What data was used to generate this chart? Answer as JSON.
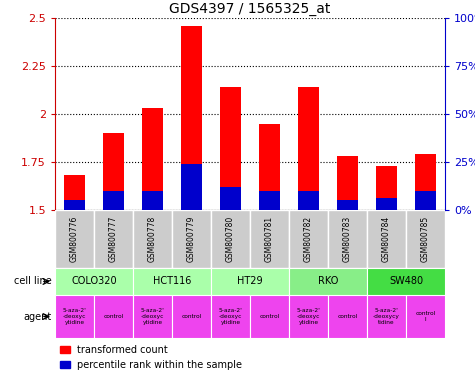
{
  "title": "GDS4397 / 1565325_at",
  "samples": [
    "GSM800776",
    "GSM800777",
    "GSM800778",
    "GSM800779",
    "GSM800780",
    "GSM800781",
    "GSM800782",
    "GSM800783",
    "GSM800784",
    "GSM800785"
  ],
  "transformed_counts": [
    1.68,
    1.9,
    2.03,
    2.46,
    2.14,
    1.95,
    2.14,
    1.78,
    1.73,
    1.79
  ],
  "percentile_ranks_pct": [
    5,
    10,
    10,
    24,
    12,
    10,
    10,
    5,
    6,
    10
  ],
  "bar_base": 1.5,
  "ylim_left": [
    1.5,
    2.5
  ],
  "ylim_right": [
    0,
    100
  ],
  "yticks_left": [
    1.5,
    1.75,
    2.0,
    2.25,
    2.5
  ],
  "yticks_right": [
    0,
    25,
    50,
    75,
    100
  ],
  "yticklabels_left": [
    "1.5",
    "1.75",
    "2",
    "2.25",
    "2.5"
  ],
  "yticklabels_right": [
    "0%",
    "25%",
    "50%",
    "75%",
    "100%"
  ],
  "cell_lines": [
    {
      "name": "COLO320",
      "span": [
        0,
        2
      ],
      "color": "#aaffaa"
    },
    {
      "name": "HCT116",
      "span": [
        2,
        4
      ],
      "color": "#aaffaa"
    },
    {
      "name": "HT29",
      "span": [
        4,
        6
      ],
      "color": "#aaffaa"
    },
    {
      "name": "RKO",
      "span": [
        6,
        8
      ],
      "color": "#88ee88"
    },
    {
      "name": "SW480",
      "span": [
        8,
        10
      ],
      "color": "#44dd44"
    }
  ],
  "agents": [
    {
      "name": "5-aza-2'\n-deoxyc\nytidine",
      "span": [
        0,
        1
      ],
      "color": "#ee44ee"
    },
    {
      "name": "control",
      "span": [
        1,
        2
      ],
      "color": "#ee44ee"
    },
    {
      "name": "5-aza-2'\n-deoxyc\nytidine",
      "span": [
        2,
        3
      ],
      "color": "#ee44ee"
    },
    {
      "name": "control",
      "span": [
        3,
        4
      ],
      "color": "#ee44ee"
    },
    {
      "name": "5-aza-2'\n-deoxyc\nytidine",
      "span": [
        4,
        5
      ],
      "color": "#ee44ee"
    },
    {
      "name": "control",
      "span": [
        5,
        6
      ],
      "color": "#ee44ee"
    },
    {
      "name": "5-aza-2'\n-deoxyc\nytidine",
      "span": [
        6,
        7
      ],
      "color": "#ee44ee"
    },
    {
      "name": "control",
      "span": [
        7,
        8
      ],
      "color": "#ee44ee"
    },
    {
      "name": "5-aza-2'\n-deoxycy\ntidine",
      "span": [
        8,
        9
      ],
      "color": "#ee44ee"
    },
    {
      "name": "control\nl",
      "span": [
        9,
        10
      ],
      "color": "#ee44ee"
    }
  ],
  "bar_color_red": "#ff0000",
  "bar_color_blue": "#0000cc",
  "sample_bg_color": "#cccccc",
  "left_axis_color": "#cc0000",
  "right_axis_color": "#0000cc",
  "figsize": [
    4.75,
    3.84
  ],
  "dpi": 100
}
